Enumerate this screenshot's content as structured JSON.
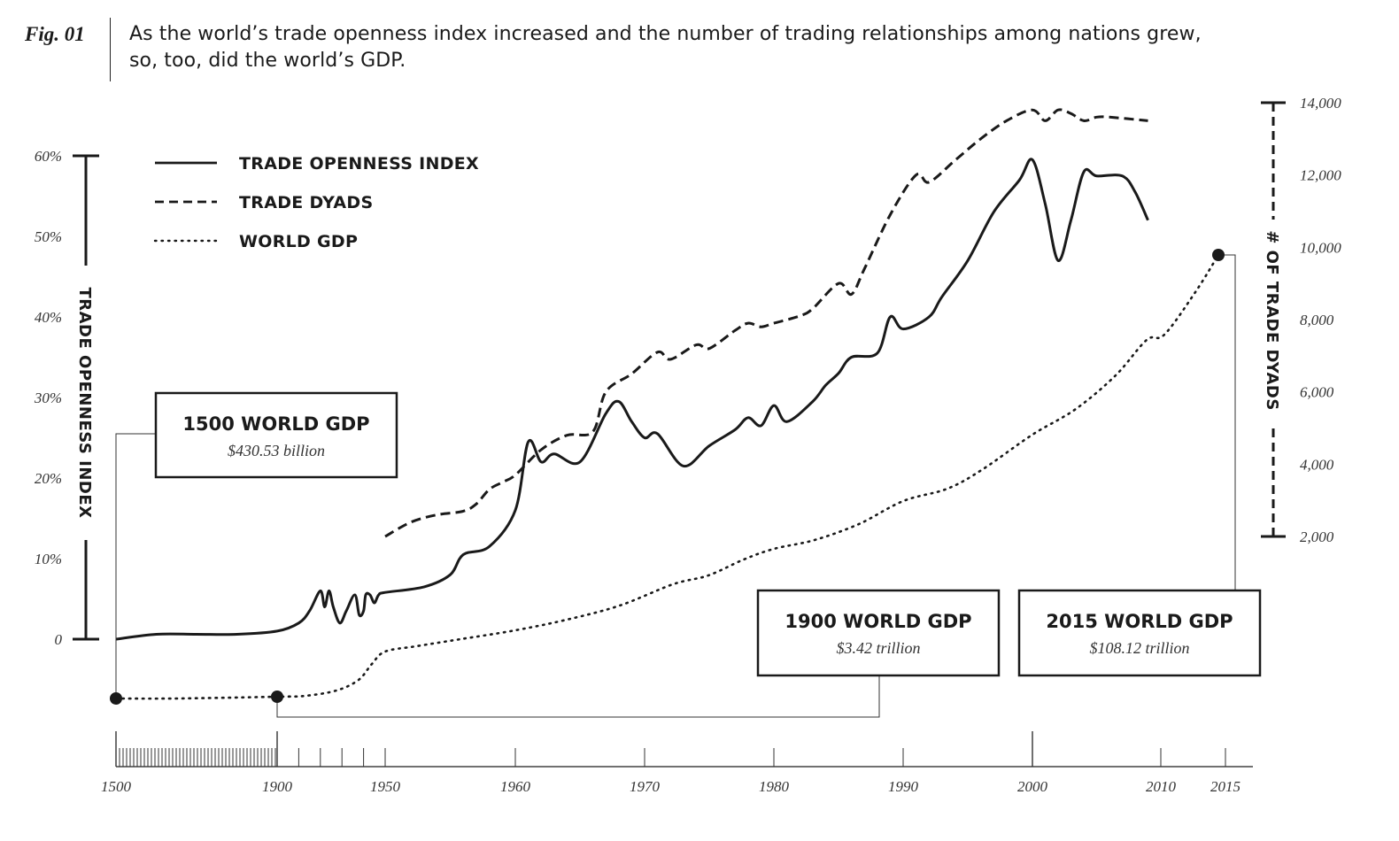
{
  "figure": {
    "label": "Fig. 01",
    "caption_line1": "As the world’s trade openness index increased and the number of trading relationships among nations grew,",
    "caption_line2": "so, too, did the world’s GDP."
  },
  "chart_data": {
    "type": "line",
    "y_left": {
      "label": "TRADE OPENNESS INDEX",
      "ticks": [
        "0",
        "10%",
        "20%",
        "30%",
        "40%",
        "50%",
        "60%"
      ],
      "tick_values": [
        0,
        10,
        20,
        30,
        40,
        50,
        60
      ],
      "range": [
        0,
        60
      ]
    },
    "y_right": {
      "label": "# OF TRADE DYADS",
      "ticks": [
        "2,000",
        "4,000",
        "6,000",
        "8,000",
        "10,000",
        "12,000",
        "14,000"
      ],
      "tick_values": [
        2000,
        4000,
        6000,
        8000,
        10000,
        12000,
        14000
      ],
      "range": [
        2000,
        14000
      ]
    },
    "x_axis": {
      "ticks": [
        "1500",
        "1900",
        "1950",
        "1960",
        "1970",
        "1980",
        "1990",
        "2000",
        "2010",
        "2015"
      ],
      "tick_values": [
        1500,
        1900,
        1950,
        1960,
        1970,
        1980,
        1990,
        2000,
        2010,
        2015
      ]
    },
    "legend": [
      {
        "name": "TRADE OPENNESS INDEX",
        "style": "solid"
      },
      {
        "name": "TRADE DYADS",
        "style": "dashed"
      },
      {
        "name": "WORLD GDP",
        "style": "dotted"
      }
    ],
    "series": [
      {
        "name": "TRADE OPENNESS INDEX",
        "axis": "left",
        "points": [
          [
            1500,
            0
          ],
          [
            1600,
            0.6
          ],
          [
            1700,
            0.6
          ],
          [
            1800,
            0.6
          ],
          [
            1900,
            1.0
          ],
          [
            1910,
            2.0
          ],
          [
            1915,
            3.5
          ],
          [
            1920,
            6.0
          ],
          [
            1922,
            4.0
          ],
          [
            1924,
            6.0
          ],
          [
            1926,
            4.0
          ],
          [
            1929,
            2.0
          ],
          [
            1932,
            3.5
          ],
          [
            1936,
            5.5
          ],
          [
            1938,
            3.0
          ],
          [
            1940,
            3.5
          ],
          [
            1941,
            5.5
          ],
          [
            1943,
            5.5
          ],
          [
            1945,
            4.5
          ],
          [
            1947,
            5.5
          ],
          [
            1950,
            5.8
          ],
          [
            1953,
            6.5
          ],
          [
            1955,
            8.0
          ],
          [
            1956,
            10.5
          ],
          [
            1958,
            11.5
          ],
          [
            1960,
            16.0
          ],
          [
            1961,
            24.5
          ],
          [
            1962,
            22.0
          ],
          [
            1963,
            23.0
          ],
          [
            1965,
            22.0
          ],
          [
            1967,
            28.0
          ],
          [
            1968,
            29.5
          ],
          [
            1969,
            27.0
          ],
          [
            1970,
            25.0
          ],
          [
            1971,
            25.5
          ],
          [
            1973,
            21.5
          ],
          [
            1975,
            24.0
          ],
          [
            1977,
            26.0
          ],
          [
            1978,
            27.5
          ],
          [
            1979,
            26.5
          ],
          [
            1980,
            29.0
          ],
          [
            1981,
            27.0
          ],
          [
            1983,
            29.5
          ],
          [
            1984,
            31.5
          ],
          [
            1985,
            33.0
          ],
          [
            1986,
            35.0
          ],
          [
            1988,
            35.5
          ],
          [
            1989,
            40.0
          ],
          [
            1990,
            38.5
          ],
          [
            1992,
            40.0
          ],
          [
            1993,
            42.5
          ],
          [
            1995,
            47.0
          ],
          [
            1997,
            53.0
          ],
          [
            1999,
            57.0
          ],
          [
            2000,
            59.5
          ],
          [
            2001,
            54.0
          ],
          [
            2002,
            47.0
          ],
          [
            2003,
            52.0
          ],
          [
            2004,
            58.0
          ],
          [
            2005,
            57.5
          ],
          [
            2007,
            57.5
          ],
          [
            2008,
            55.5
          ],
          [
            2009,
            52.0
          ]
        ]
      },
      {
        "name": "TRADE DYADS",
        "axis": "right",
        "points": [
          [
            1950,
            2000
          ],
          [
            1952,
            2400
          ],
          [
            1954,
            2600
          ],
          [
            1956,
            2700
          ],
          [
            1957,
            2900
          ],
          [
            1958,
            3300
          ],
          [
            1959,
            3500
          ],
          [
            1960,
            3700
          ],
          [
            1962,
            4400
          ],
          [
            1964,
            4800
          ],
          [
            1966,
            4900
          ],
          [
            1967,
            6000
          ],
          [
            1969,
            6500
          ],
          [
            1971,
            7100
          ],
          [
            1972,
            6900
          ],
          [
            1974,
            7300
          ],
          [
            1975,
            7200
          ],
          [
            1977,
            7700
          ],
          [
            1978,
            7900
          ],
          [
            1979,
            7800
          ],
          [
            1980,
            7900
          ],
          [
            1982,
            8100
          ],
          [
            1983,
            8300
          ],
          [
            1985,
            9000
          ],
          [
            1986,
            8700
          ],
          [
            1987,
            9400
          ],
          [
            1989,
            10900
          ],
          [
            1991,
            12000
          ],
          [
            1992,
            11800
          ],
          [
            1994,
            12400
          ],
          [
            1996,
            13000
          ],
          [
            1998,
            13500
          ],
          [
            2000,
            13800
          ],
          [
            2001,
            13500
          ],
          [
            2002,
            13800
          ],
          [
            2003,
            13700
          ],
          [
            2004,
            13500
          ],
          [
            2005,
            13600
          ],
          [
            2006,
            13600
          ],
          [
            2009,
            13500
          ]
        ]
      },
      {
        "name": "WORLD GDP",
        "axis": "none",
        "annotations": [
          {
            "title": "1500 WORLD GDP",
            "value": "$430.53 billion",
            "year": 1500
          },
          {
            "title": "1900 WORLD GDP",
            "value": "$3.42 trillion",
            "year": 1900
          },
          {
            "title": "2015 WORLD GDP",
            "value": "$108.12 trillion",
            "year": 2015
          }
        ]
      }
    ]
  }
}
